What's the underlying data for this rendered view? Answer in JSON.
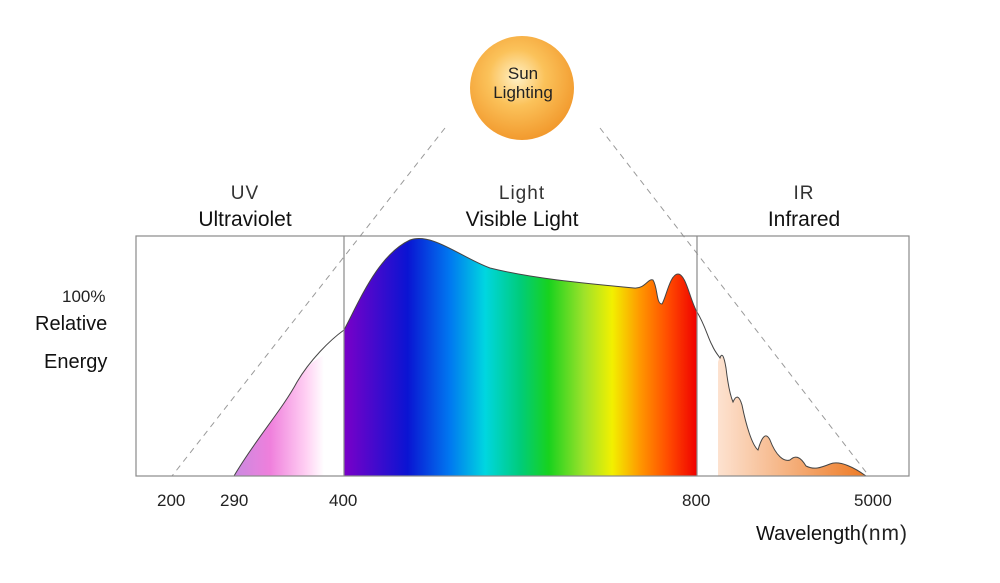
{
  "source": {
    "line1": "Sun",
    "line2": "Lighting"
  },
  "regions": [
    {
      "short": "UV",
      "full": "Ultraviolet"
    },
    {
      "short": "Light",
      "full": "Visible Light"
    },
    {
      "short": "IR",
      "full": "Infrared"
    }
  ],
  "y_axis": {
    "top": "100%",
    "line1": "Relative",
    "line2": "Energy"
  },
  "x_axis": {
    "title": "Wavelength",
    "unit": "(nm)",
    "ticks": [
      "200",
      "290",
      "400",
      "800",
      "5000"
    ]
  },
  "colors": {
    "sun": "#f6a33a",
    "uv": "#e66ad8",
    "ir": "#f08a3a",
    "frame": "#8a8a8a"
  }
}
